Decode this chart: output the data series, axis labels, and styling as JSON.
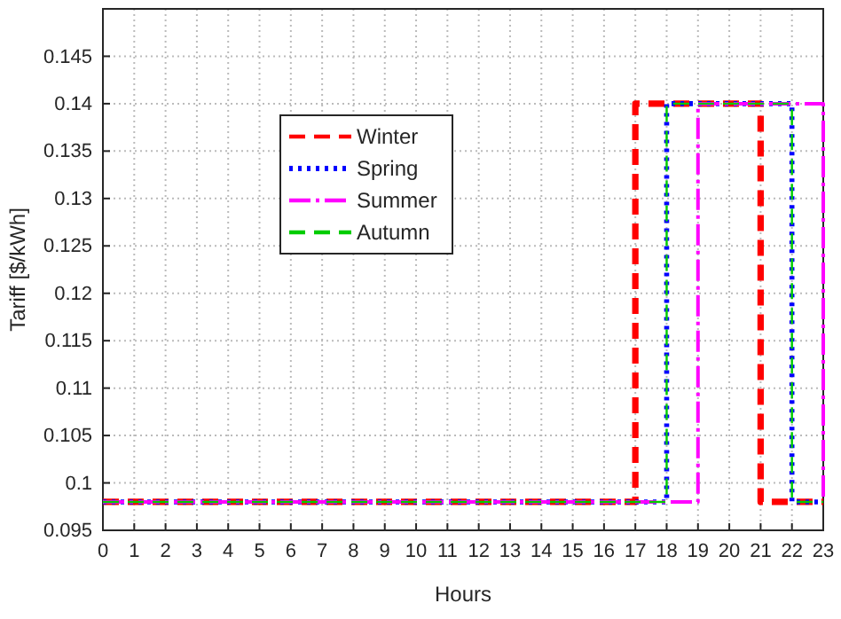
{
  "chart_data": {
    "type": "step",
    "xlabel": "Hours",
    "ylabel": "Tariff [$/kWh]",
    "x": [
      0,
      1,
      2,
      3,
      4,
      5,
      6,
      7,
      8,
      9,
      10,
      11,
      12,
      13,
      14,
      15,
      16,
      17,
      18,
      19,
      20,
      21,
      22,
      23
    ],
    "xlim": [
      0,
      23
    ],
    "xticks": [
      0,
      1,
      2,
      3,
      4,
      5,
      6,
      7,
      8,
      9,
      10,
      11,
      12,
      13,
      14,
      15,
      16,
      17,
      18,
      19,
      20,
      21,
      22,
      23
    ],
    "ylim": [
      0.095,
      0.15
    ],
    "yticks": [
      0.095,
      0.1,
      0.105,
      0.11,
      0.115,
      0.12,
      0.125,
      0.13,
      0.135,
      0.14,
      0.145
    ],
    "grid": true,
    "legend": "top left",
    "marker": "none",
    "series": [
      {
        "name": "Winter",
        "color": "#ff0000",
        "line_style": "dashed",
        "values": [
          0.098,
          0.098,
          0.098,
          0.098,
          0.098,
          0.098,
          0.098,
          0.098,
          0.098,
          0.098,
          0.098,
          0.098,
          0.098,
          0.098,
          0.098,
          0.098,
          0.098,
          0.14,
          0.14,
          0.14,
          0.14,
          0.098,
          0.098,
          0.098
        ]
      },
      {
        "name": "Spring",
        "color": "#0000ff",
        "line_style": "dotted",
        "values": [
          0.098,
          0.098,
          0.098,
          0.098,
          0.098,
          0.098,
          0.098,
          0.098,
          0.098,
          0.098,
          0.098,
          0.098,
          0.098,
          0.098,
          0.098,
          0.098,
          0.098,
          0.098,
          0.14,
          0.14,
          0.14,
          0.14,
          0.098,
          0.098
        ]
      },
      {
        "name": "Summer",
        "color": "#ff00ff",
        "line_style": "dashdot",
        "values": [
          0.098,
          0.098,
          0.098,
          0.098,
          0.098,
          0.098,
          0.098,
          0.098,
          0.098,
          0.098,
          0.098,
          0.098,
          0.098,
          0.098,
          0.098,
          0.098,
          0.098,
          0.098,
          0.098,
          0.14,
          0.14,
          0.14,
          0.14,
          0.098
        ]
      },
      {
        "name": "Autumn",
        "color": "#00cc00",
        "line_style": "dashed",
        "values": [
          0.098,
          0.098,
          0.098,
          0.098,
          0.098,
          0.098,
          0.098,
          0.098,
          0.098,
          0.098,
          0.098,
          0.098,
          0.098,
          0.098,
          0.098,
          0.098,
          0.098,
          0.098,
          0.14,
          0.14,
          0.14,
          0.14,
          0.098,
          0.098
        ]
      }
    ]
  }
}
